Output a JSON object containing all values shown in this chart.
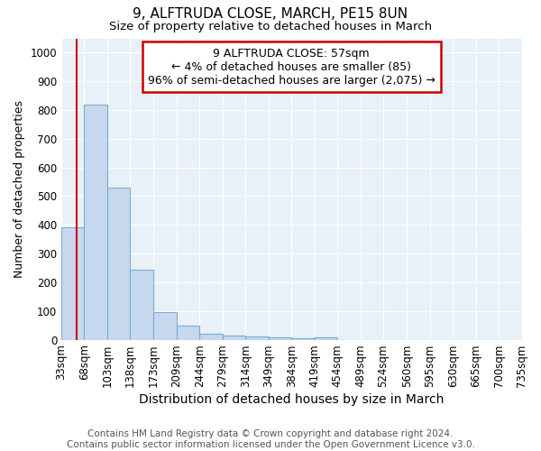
{
  "title": "9, ALFTRUDA CLOSE, MARCH, PE15 8UN",
  "subtitle": "Size of property relative to detached houses in March",
  "xlabel": "Distribution of detached houses by size in March",
  "ylabel": "Number of detached properties",
  "bar_color": "#c5d8ee",
  "bar_edge_color": "#7aaed4",
  "plot_bg_color": "#e8f0f8",
  "fig_bg_color": "#ffffff",
  "grid_color": "#ffffff",
  "annotation_box_color": "#cc0000",
  "property_line_color": "#cc0000",
  "property_size": 57,
  "annotation_text": "9 ALFTRUDA CLOSE: 57sqm\n← 4% of detached houses are smaller (85)\n96% of semi-detached houses are larger (2,075) →",
  "bin_edges": [
    33,
    68,
    103,
    138,
    173,
    209,
    244,
    279,
    314,
    349,
    384,
    419,
    454,
    489,
    524,
    560,
    595,
    630,
    665,
    700,
    735
  ],
  "bar_heights": [
    390,
    820,
    530,
    243,
    95,
    50,
    20,
    15,
    10,
    8,
    5,
    8,
    0,
    0,
    0,
    0,
    0,
    0,
    0,
    0
  ],
  "ylim": [
    0,
    1050
  ],
  "yticks": [
    0,
    100,
    200,
    300,
    400,
    500,
    600,
    700,
    800,
    900,
    1000
  ],
  "footer_text": "Contains HM Land Registry data © Crown copyright and database right 2024.\nContains public sector information licensed under the Open Government Licence v3.0.",
  "footer_fontsize": 7.5,
  "title_fontsize": 11,
  "subtitle_fontsize": 9.5,
  "xlabel_fontsize": 10,
  "ylabel_fontsize": 9,
  "tick_fontsize": 8.5
}
